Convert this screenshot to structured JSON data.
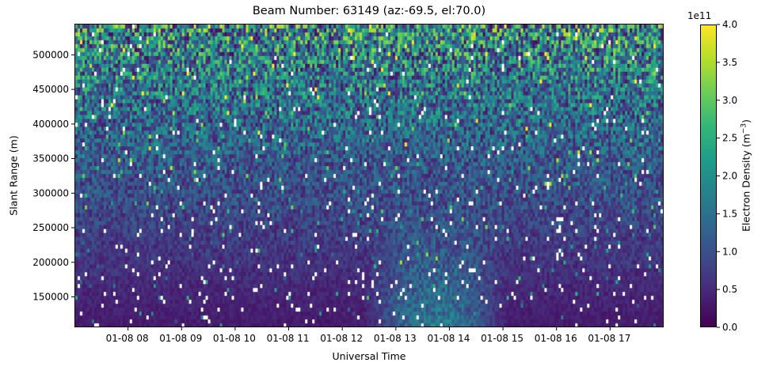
{
  "chart_data": {
    "type": "heatmap",
    "title": "Beam Number: 63149 (az:-69.5, el:70.0)",
    "xlabel": "Universal Time",
    "ylabel": "Slant Range (m)",
    "x_tick_labels": [
      "01-08 08",
      "01-08 09",
      "01-08 10",
      "01-08 11",
      "01-08 12",
      "01-08 13",
      "01-08 14",
      "01-08 15",
      "01-08 16",
      "01-08 17"
    ],
    "x_range_hours": [
      7.0,
      18.0
    ],
    "x_ticks_hours": [
      8,
      9,
      10,
      11,
      12,
      13,
      14,
      15,
      16,
      17
    ],
    "y_ticks": [
      150000,
      200000,
      250000,
      300000,
      350000,
      400000,
      450000,
      500000
    ],
    "y_tick_labels": [
      "150000",
      "200000",
      "250000",
      "300000",
      "350000",
      "400000",
      "450000",
      "500000"
    ],
    "ylim": [
      106000,
      545000
    ],
    "colorbar": {
      "label": "Electron Density (m$^{-3}$)",
      "label_text": "Electron Density (m",
      "label_sup": "−3",
      "label_close": ")",
      "offset_text": "1e11",
      "range": [
        0.0,
        4.0
      ],
      "ticks": [
        0.0,
        0.5,
        1.0,
        1.5,
        2.0,
        2.5,
        3.0,
        3.5,
        4.0
      ],
      "tick_labels": [
        "0.0",
        "0.5",
        "1.0",
        "1.5",
        "2.0",
        "2.5",
        "3.0",
        "3.5",
        "4.0"
      ],
      "colormap": "viridis"
    },
    "description_of_values": {
      "background_low_altitude": 0.3,
      "background_high_altitude": 1.9,
      "enhancement_time_hours": [
        12.4,
        15.1
      ],
      "enhancement_peak": 1.9,
      "enhancement_range_m": [
        106000,
        200000
      ],
      "noise_fraction": 0.6,
      "missing_cells_fraction": 0.03
    },
    "grid": false,
    "colors": {
      "viridis_0": "#440154",
      "viridis_25": "#3b528b",
      "viridis_50": "#21918c",
      "viridis_75": "#5ec962",
      "viridis_100": "#fde725"
    }
  }
}
